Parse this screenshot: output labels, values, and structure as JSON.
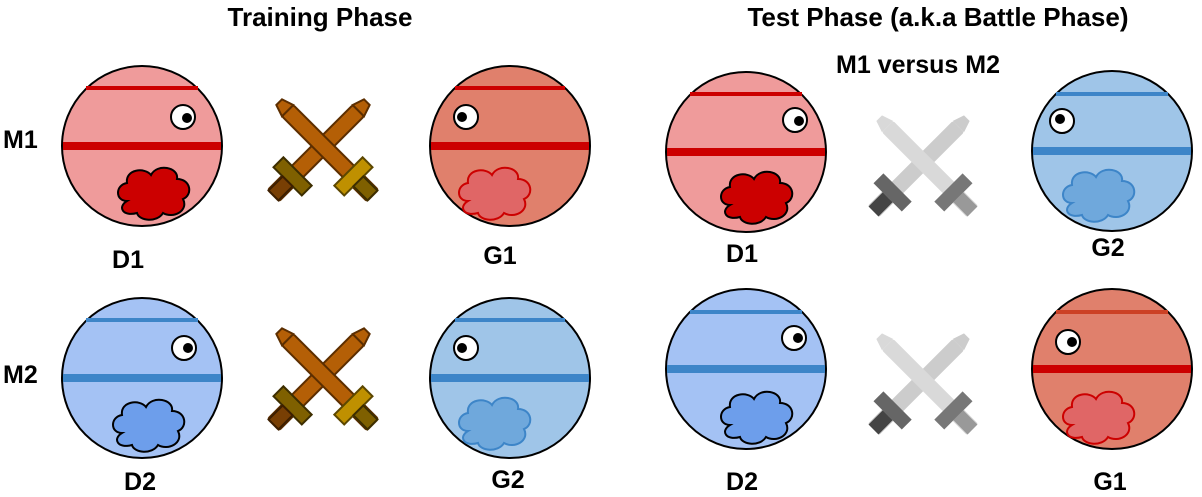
{
  "training": {
    "title": "Training Phase",
    "row_labels": [
      "M1",
      "M2"
    ],
    "top": {
      "left_label": "D1",
      "right_label": "G1"
    },
    "bottom": {
      "left_label": "D2",
      "right_label": "G2"
    }
  },
  "test": {
    "title": "Test Phase (a.k.a Battle Phase)",
    "subtitle": "M1 versus M2",
    "top": {
      "left_label": "D1",
      "right_label": "G2"
    },
    "bottom": {
      "left_label": "D2",
      "right_label": "G1"
    }
  },
  "colors": {
    "red_disc": "#ef9b9b",
    "red_gen": "#e0806c",
    "blue_disc": "#a4c2f4",
    "blue_gen": "#9fc5e8",
    "red_line": "#cc0000",
    "blue_line": "#3d85c8",
    "sword_brown": "#b45f06",
    "sword_gold": "#bf9000",
    "sword_gray": "#cccccc"
  }
}
